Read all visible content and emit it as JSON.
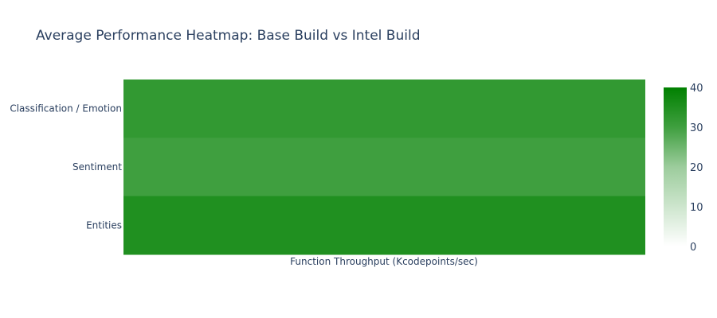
{
  "chart_data": {
    "type": "heatmap",
    "title": "Average Performance Heatmap: Base Build vs Intel Build",
    "xlabel": "Function Throughput (Kcodepoints/sec)",
    "ylabel": "",
    "categories": [
      "Classification / Emotion",
      "Sentiment",
      "Entities"
    ],
    "values": [
      32,
      30,
      35
    ],
    "colorbar": {
      "range": [
        0,
        40
      ],
      "ticks": [
        "0",
        "10",
        "20",
        "30",
        "40"
      ],
      "colorscale": [
        [
          0,
          "#ffffff"
        ],
        [
          0.5,
          "#9ccc9c"
        ],
        [
          0.75,
          "#3f9f3f"
        ],
        [
          1,
          "#008000"
        ]
      ]
    }
  }
}
